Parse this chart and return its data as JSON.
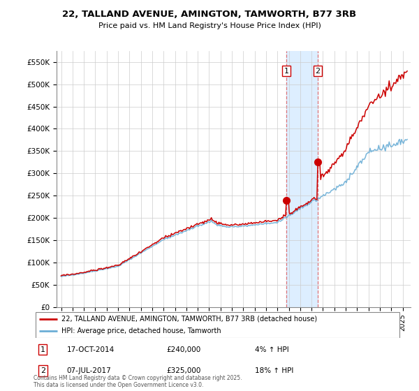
{
  "title": "22, TALLAND AVENUE, AMINGTON, TAMWORTH, B77 3RB",
  "subtitle": "Price paid vs. HM Land Registry's House Price Index (HPI)",
  "legend_entry1": "22, TALLAND AVENUE, AMINGTON, TAMWORTH, B77 3RB (detached house)",
  "legend_entry2": "HPI: Average price, detached house, Tamworth",
  "transaction1_date": "17-OCT-2014",
  "transaction1_price": 240000,
  "transaction1_label": "1",
  "transaction1_hpi_text": "4% ↑ HPI",
  "transaction2_date": "07-JUL-2017",
  "transaction2_price": 325000,
  "transaction2_label": "2",
  "transaction2_hpi_text": "18% ↑ HPI",
  "footer": "Contains HM Land Registry data © Crown copyright and database right 2025.\nThis data is licensed under the Open Government Licence v3.0.",
  "hpi_color": "#6baed6",
  "price_color": "#cc0000",
  "highlight_color": "#ddeeff",
  "grid_color": "#cccccc",
  "background_color": "#ffffff",
  "ylim": [
    0,
    575000
  ],
  "yticks": [
    0,
    50000,
    100000,
    150000,
    200000,
    250000,
    300000,
    350000,
    400000,
    450000,
    500000,
    550000
  ],
  "t1_year": 2014.79,
  "t2_year": 2017.54,
  "t1_price": 240000,
  "t2_price": 325000
}
